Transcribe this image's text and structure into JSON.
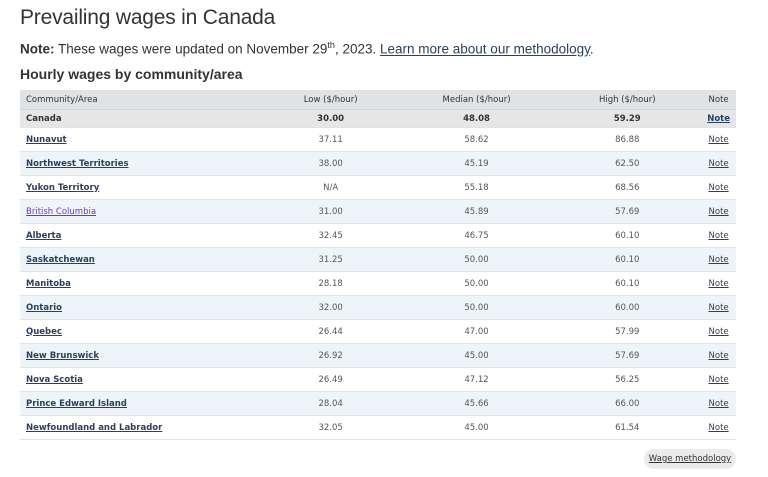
{
  "page": {
    "title": "Prevailing wages in Canada"
  },
  "note": {
    "label": "Note:",
    "text": " These wages were updated on November 29",
    "sup": "th",
    "text_after": ", 2023. ",
    "link": "Learn more about our methodology",
    "end": "."
  },
  "section": {
    "title": "Hourly wages by community/area"
  },
  "table": {
    "headers": [
      "Community/Area",
      "Low ($/hour)",
      "Median ($/hour)",
      "High ($/hour)",
      "Note"
    ],
    "rows": [
      {
        "area": "Canada",
        "low": "30.00",
        "median": "48.08",
        "high": "59.29",
        "note": "Note"
      },
      {
        "area": "Nunavut",
        "low": "37.11",
        "median": "58.62",
        "high": "86.88",
        "note": "Note"
      },
      {
        "area": "Northwest Territories",
        "low": "38.00",
        "median": "45.19",
        "high": "62.50",
        "note": "Note"
      },
      {
        "area": "Yukon Territory",
        "low": "N/A",
        "median": "55.18",
        "high": "68.56",
        "note": "Note"
      },
      {
        "area": "British Columbia",
        "low": "31.00",
        "median": "45.89",
        "high": "57.69",
        "note": "Note"
      },
      {
        "area": "Alberta",
        "low": "32.45",
        "median": "46.75",
        "high": "60.10",
        "note": "Note"
      },
      {
        "area": "Saskatchewan",
        "low": "31.25",
        "median": "50.00",
        "high": "60.10",
        "note": "Note"
      },
      {
        "area": "Manitoba",
        "low": "28.18",
        "median": "50.00",
        "high": "60.10",
        "note": "Note"
      },
      {
        "area": "Ontario",
        "low": "32.00",
        "median": "50.00",
        "high": "60.00",
        "note": "Note"
      },
      {
        "area": "Quebec",
        "low": "26.44",
        "median": "47.00",
        "high": "57.99",
        "note": "Note"
      },
      {
        "area": "New Brunswick",
        "low": "26.92",
        "median": "45.00",
        "high": "57.69",
        "note": "Note"
      },
      {
        "area": "Nova Scotia",
        "low": "26.49",
        "median": "47.12",
        "high": "56.25",
        "note": "Note"
      },
      {
        "area": "Prince Edward Island",
        "low": "28.04",
        "median": "45.66",
        "high": "66.00",
        "note": "Note"
      },
      {
        "area": "Newfoundland and Labrador",
        "low": "32.05",
        "median": "45.00",
        "high": "61.54",
        "note": "Note"
      }
    ]
  },
  "footer": {
    "methodology_button": "Wage methodology"
  },
  "colors": {
    "link": "#284162",
    "visited_link": "#7834bc",
    "header_bg": "#dfe3e6",
    "stripe_bg": "#eef4f8",
    "canada_row_bg": "#e6e6e6"
  }
}
